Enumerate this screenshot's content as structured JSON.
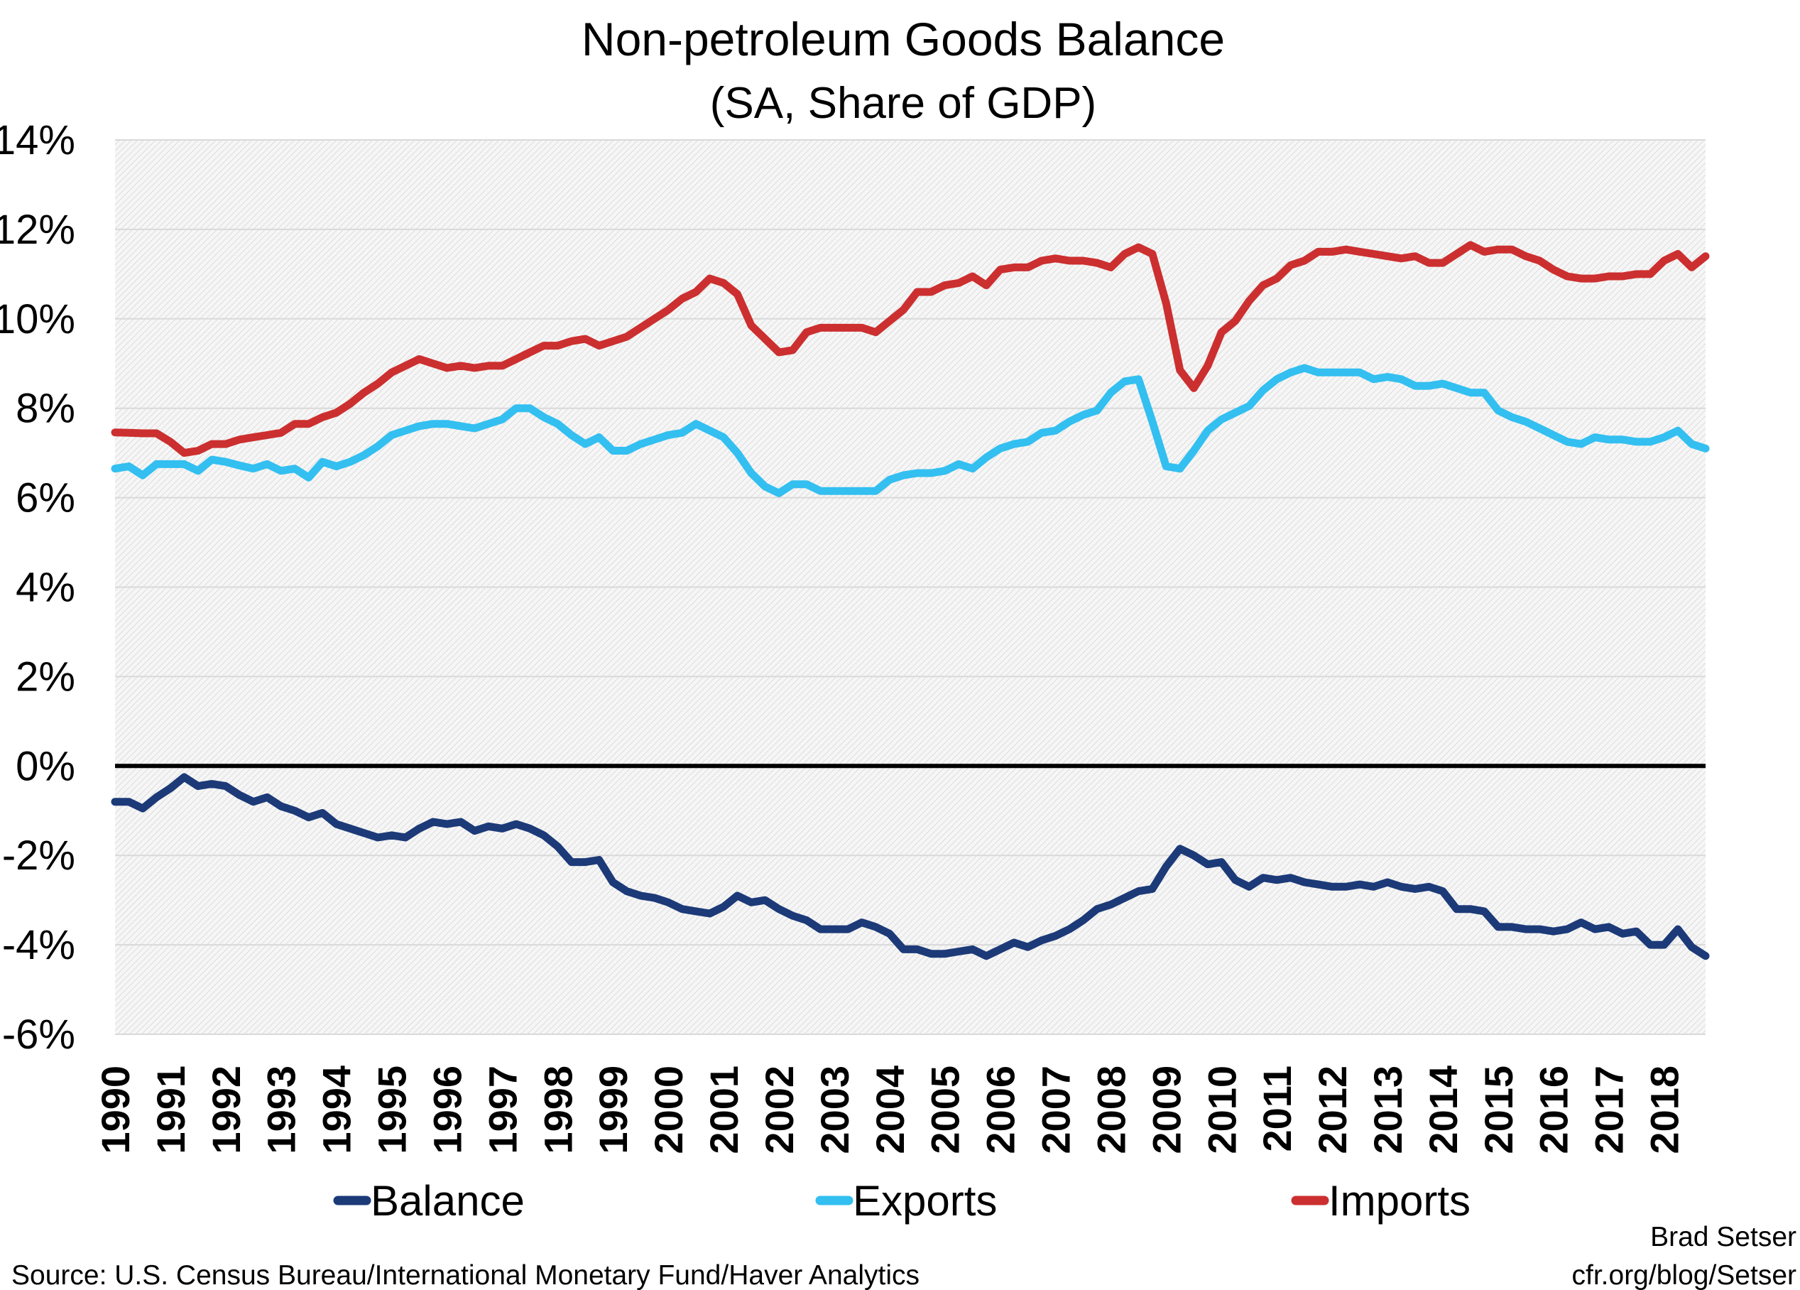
{
  "chart_data": {
    "type": "line",
    "title": "Non-petroleum Goods Balance",
    "subtitle": "(SA, Share of GDP)",
    "xlabel": "",
    "ylabel": "",
    "x_start": 1990,
    "x_frequency": "quarterly",
    "x_ticks": [
      "1990",
      "1991",
      "1992",
      "1993",
      "1994",
      "1995",
      "1996",
      "1997",
      "1998",
      "1999",
      "2000",
      "2001",
      "2002",
      "2003",
      "2004",
      "2005",
      "2006",
      "2007",
      "2008",
      "2009",
      "2010",
      "2011",
      "2012",
      "2013",
      "2014",
      "2015",
      "2016",
      "2017",
      "2018"
    ],
    "y_ticks": [
      "-6%",
      "-4%",
      "-2%",
      "0%",
      "2%",
      "4%",
      "6%",
      "8%",
      "10%",
      "12%",
      "14%"
    ],
    "ylim": [
      -6,
      14
    ],
    "grid": true,
    "legend_position": "bottom",
    "series": [
      {
        "name": "Balance",
        "color": "#1c3a78",
        "values": [
          -0.8,
          -0.8,
          -0.95,
          -0.7,
          -0.5,
          -0.25,
          -0.45,
          -0.4,
          -0.45,
          -0.65,
          -0.8,
          -0.7,
          -0.9,
          -1.0,
          -1.15,
          -1.05,
          -1.3,
          -1.4,
          -1.5,
          -1.6,
          -1.55,
          -1.6,
          -1.4,
          -1.25,
          -1.3,
          -1.25,
          -1.45,
          -1.35,
          -1.4,
          -1.3,
          -1.4,
          -1.55,
          -1.8,
          -2.15,
          -2.15,
          -2.1,
          -2.6,
          -2.8,
          -2.9,
          -2.95,
          -3.05,
          -3.2,
          -3.25,
          -3.3,
          -3.15,
          -2.9,
          -3.05,
          -3.0,
          -3.2,
          -3.35,
          -3.45,
          -3.65,
          -3.65,
          -3.65,
          -3.5,
          -3.6,
          -3.75,
          -4.1,
          -4.1,
          -4.2,
          -4.2,
          -4.15,
          -4.1,
          -4.25,
          -4.1,
          -3.95,
          -4.05,
          -3.9,
          -3.8,
          -3.65,
          -3.45,
          -3.2,
          -3.1,
          -2.95,
          -2.8,
          -2.75,
          -2.25,
          -1.85,
          -2.0,
          -2.2,
          -2.15,
          -2.55,
          -2.7,
          -2.5,
          -2.55,
          -2.5,
          -2.6,
          -2.65,
          -2.7,
          -2.7,
          -2.65,
          -2.7,
          -2.6,
          -2.7,
          -2.75,
          -2.7,
          -2.8,
          -3.2,
          -3.2,
          -3.25,
          -3.6,
          -3.6,
          -3.65,
          -3.65,
          -3.7,
          -3.65,
          -3.5,
          -3.65,
          -3.6,
          -3.75,
          -3.7,
          -4.0,
          -4.0,
          -3.65,
          -4.05,
          -4.25
        ]
      },
      {
        "name": "Exports",
        "color": "#33bff0",
        "values": [
          6.65,
          6.7,
          6.5,
          6.75,
          6.75,
          6.75,
          6.6,
          6.85,
          6.8,
          6.72,
          6.65,
          6.75,
          6.6,
          6.65,
          6.45,
          6.8,
          6.7,
          6.8,
          6.95,
          7.15,
          7.4,
          7.5,
          7.6,
          7.65,
          7.65,
          7.6,
          7.55,
          7.65,
          7.75,
          8.0,
          8.0,
          7.8,
          7.65,
          7.4,
          7.2,
          7.35,
          7.05,
          7.05,
          7.2,
          7.3,
          7.4,
          7.45,
          7.65,
          7.5,
          7.35,
          7.0,
          6.55,
          6.25,
          6.1,
          6.3,
          6.3,
          6.15,
          6.15,
          6.15,
          6.15,
          6.15,
          6.4,
          6.5,
          6.55,
          6.55,
          6.6,
          6.75,
          6.65,
          6.9,
          7.1,
          7.2,
          7.25,
          7.45,
          7.5,
          7.7,
          7.85,
          7.95,
          8.35,
          8.6,
          8.65,
          7.7,
          6.7,
          6.65,
          7.05,
          7.5,
          7.75,
          7.9,
          8.05,
          8.4,
          8.65,
          8.8,
          8.9,
          8.8,
          8.8,
          8.8,
          8.8,
          8.65,
          8.7,
          8.65,
          8.5,
          8.5,
          8.55,
          8.45,
          8.35,
          8.35,
          7.95,
          7.8,
          7.7,
          7.55,
          7.4,
          7.25,
          7.2,
          7.35,
          7.3,
          7.3,
          7.25,
          7.25,
          7.35,
          7.5,
          7.2,
          7.1
        ]
      },
      {
        "name": "Imports",
        "color": "#cc2f2f",
        "values": [
          7.46,
          7.45,
          7.44,
          7.44,
          7.25,
          7.0,
          7.05,
          7.2,
          7.2,
          7.3,
          7.35,
          7.4,
          7.45,
          7.65,
          7.65,
          7.8,
          7.9,
          8.1,
          8.35,
          8.55,
          8.8,
          8.95,
          9.1,
          9.0,
          8.9,
          8.95,
          8.9,
          8.95,
          8.95,
          9.1,
          9.25,
          9.4,
          9.4,
          9.5,
          9.55,
          9.4,
          9.5,
          9.6,
          9.8,
          10.0,
          10.2,
          10.45,
          10.6,
          10.9,
          10.8,
          10.55,
          9.85,
          9.55,
          9.25,
          9.3,
          9.7,
          9.8,
          9.8,
          9.8,
          9.8,
          9.7,
          9.95,
          10.2,
          10.6,
          10.6,
          10.75,
          10.8,
          10.95,
          10.75,
          11.1,
          11.15,
          11.15,
          11.3,
          11.35,
          11.3,
          11.3,
          11.25,
          11.15,
          11.45,
          11.6,
          11.45,
          10.35,
          8.85,
          8.45,
          8.95,
          9.7,
          9.95,
          10.4,
          10.75,
          10.9,
          11.2,
          11.3,
          11.5,
          11.5,
          11.55,
          11.5,
          11.45,
          11.4,
          11.35,
          11.4,
          11.25,
          11.25,
          11.45,
          11.65,
          11.5,
          11.55,
          11.55,
          11.4,
          11.3,
          11.1,
          10.95,
          10.9,
          10.9,
          10.95,
          10.95,
          11.0,
          11.0,
          11.3,
          11.45,
          11.15,
          11.4
        ]
      }
    ]
  },
  "source": "Source: U.S. Census Bureau/International Monetary Fund/Haver Analytics",
  "author": "Brad Setser",
  "author_url": "cfr.org/blog/Setser",
  "colors": {
    "zero_line": "#000000",
    "gridline": "#d9d9d9",
    "plot_background": "#f0f0f0"
  }
}
